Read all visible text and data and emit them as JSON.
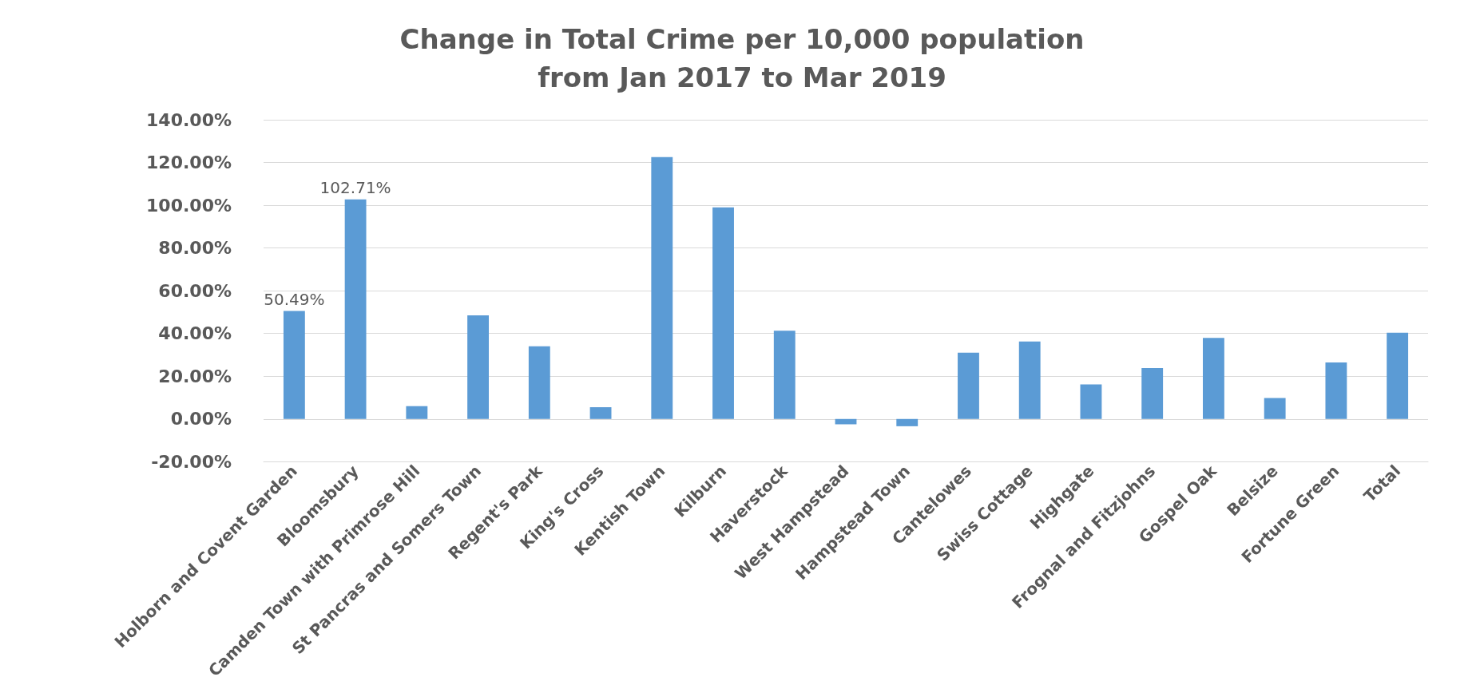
{
  "chart_data": {
    "type": "bar",
    "title": "Change in Total Crime per 10,000 population\nfrom Jan 2017 to Mar 2019",
    "categories": [
      "Holborn and Covent Garden",
      "Bloomsbury",
      "Camden Town with Primrose Hill",
      "St Pancras and Somers Town",
      "Regent's Park",
      "King's Cross",
      "Kentish Town",
      "Kilburn",
      "Haverstock",
      "West Hampstead",
      "Hampstead Town",
      "Cantelowes",
      "Swiss Cottage",
      "Highgate",
      "Frognal and Fitzjohns",
      "Gospel Oak",
      "Belsize",
      "Fortune Green",
      "Total"
    ],
    "values": [
      50.49,
      102.71,
      6,
      48.5,
      34,
      5.5,
      122.5,
      99,
      41.3,
      -2.5,
      -3.4,
      31,
      36.2,
      16.2,
      23.8,
      37.9,
      9.8,
      26.4,
      40.4
    ],
    "value_labels": [
      "50.49%",
      "102.71%",
      null,
      null,
      null,
      null,
      null,
      null,
      null,
      null,
      null,
      null,
      null,
      null,
      null,
      null,
      null,
      null,
      null
    ],
    "color": "#5b9bd5",
    "ylim": [
      -20,
      140
    ],
    "yticks": [
      {
        "value": -20,
        "label": "-20.00%"
      },
      {
        "value": 0,
        "label": "0.00%"
      },
      {
        "value": 20,
        "label": "20.00%"
      },
      {
        "value": 40,
        "label": "40.00%"
      },
      {
        "value": 60,
        "label": "60.00%"
      },
      {
        "value": 80,
        "label": "80.00%"
      },
      {
        "value": 100,
        "label": "100.00%"
      },
      {
        "value": 120,
        "label": "120.00%"
      },
      {
        "value": 140,
        "label": "140.00%"
      }
    ],
    "grid": "y"
  }
}
